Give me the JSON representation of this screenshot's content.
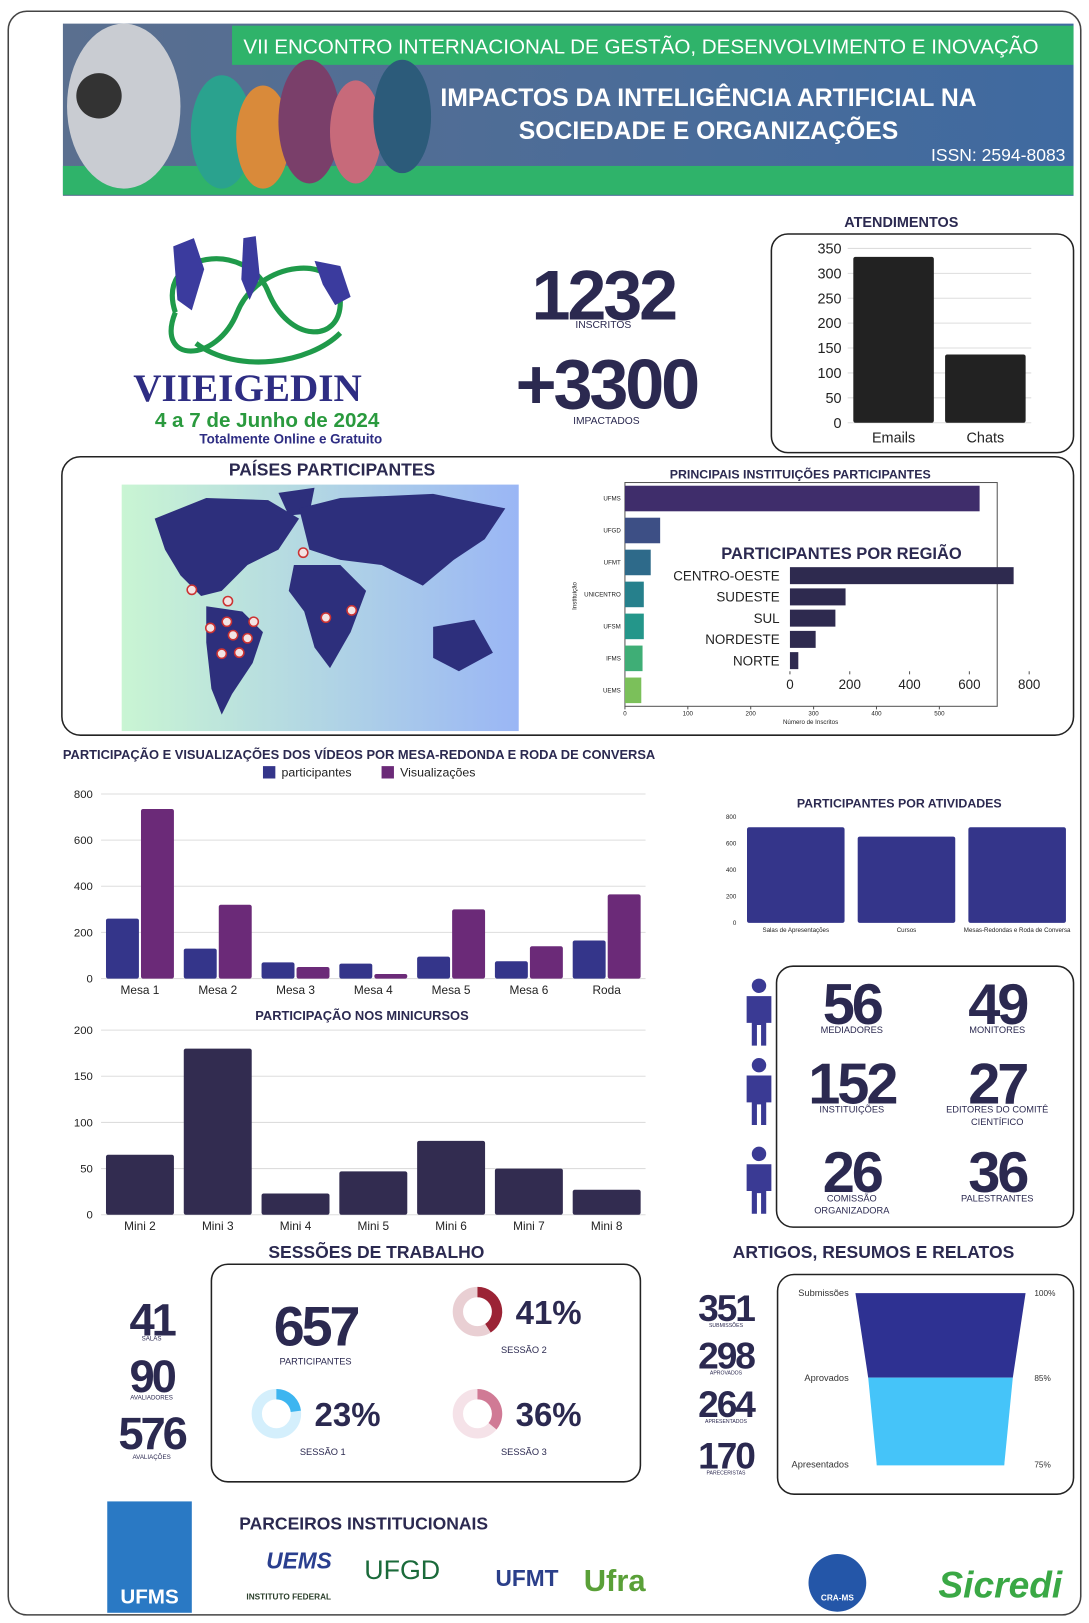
{
  "header": {
    "event": "VII ENCONTRO INTERNACIONAL DE GESTÃO, DESENVOLVIMENTO E INOVAÇÃO",
    "title_line1": "IMPACTOS DA INTELIGÊNCIA ARTIFICIAL NA",
    "title_line2": "SOCIEDADE E ORGANIZAÇÕES",
    "issn": "ISSN: 2594-8083"
  },
  "logo": {
    "name": "VIIEIGEDIN",
    "dates": "4 a 7 de Junho de 2024",
    "note": "Totalmente Online e Gratuito"
  },
  "highlights": [
    {
      "value": 1232,
      "label": "INSCRITOS"
    },
    {
      "value": "+3300",
      "label": "IMPACTADOS"
    }
  ],
  "map": {
    "title": "PAÍSES PARTICIPANTES"
  },
  "team": [
    {
      "value": 56,
      "label": [
        "MEDIADORES"
      ]
    },
    {
      "value": 49,
      "label": [
        "MONITORES"
      ]
    },
    {
      "value": 152,
      "label": [
        "INSTITUIÇÕES"
      ]
    },
    {
      "value": 27,
      "label": [
        "EDITORES DO COMITÊ",
        "CIENTÍFICO"
      ]
    },
    {
      "value": 26,
      "label": [
        "COMISSÃO",
        "ORGANIZADORA"
      ]
    },
    {
      "value": 36,
      "label": [
        "PALESTRANTES"
      ]
    }
  ],
  "sessions": {
    "title": "SESSÕES DE TRABALHO",
    "stats": [
      {
        "value": 41,
        "label": "SALAS"
      },
      {
        "value": 90,
        "label": "AVALIADORES"
      },
      {
        "value": 576,
        "label": "AVALIAÇÕES"
      }
    ],
    "participants": {
      "value": 657,
      "label": "PARTICIPANTES"
    }
  },
  "papers": {
    "title": "ARTIGOS, RESUMOS E RELATOS",
    "stats": [
      {
        "value": 351,
        "label": "SUBMISSÕES"
      },
      {
        "value": 298,
        "label": "APROVADOS"
      },
      {
        "value": 264,
        "label": "APRESENTADOS"
      },
      {
        "value": 170,
        "label": "PARECERISTAS"
      }
    ]
  },
  "partners": {
    "title": "PARCEIROS INSTITUCIONAIS",
    "logos": [
      "UFMS",
      "UEMS",
      "INSTITUTO FEDERAL",
      "UFGD",
      "UFMT",
      "Ufra",
      "CRA-MS",
      "Sicredi"
    ]
  },
  "chart_data": [
    {
      "type": "bar",
      "title": "ATENDIMENTOS",
      "categories": [
        "Emails",
        "Chats"
      ],
      "values": [
        333,
        137
      ],
      "color": "#222222",
      "ylim": [
        0,
        350
      ],
      "yticks": [
        0,
        50,
        100,
        150,
        200,
        250,
        300,
        350
      ],
      "grid": true
    },
    {
      "type": "hbar",
      "title": "PRINCIPAIS INSTITUIÇÕES PARTICIPANTES",
      "x_label": "Número de Inscritos",
      "y_label": "Instituição",
      "categories": [
        "UFMS",
        "UFGD",
        "UFMT",
        "UNICENTRO",
        "UFSM",
        "IFMS",
        "UEMS"
      ],
      "values": [
        564,
        56,
        41,
        30,
        30,
        28,
        26
      ],
      "colors": [
        "#3f2d6b",
        "#3d4f85",
        "#2e6a8a",
        "#26808c",
        "#24968a",
        "#3fae76",
        "#7bc05a"
      ],
      "xlim": [
        0,
        592
      ],
      "xticks": [
        0,
        100,
        200,
        300,
        400,
        500
      ]
    },
    {
      "type": "hbar",
      "title": "PARTICIPANTES POR REGIÃO",
      "categories": [
        "CENTRO-OESTE",
        "SUDESTE",
        "SUL",
        "NORDESTE",
        "NORTE"
      ],
      "values": [
        748,
        186,
        152,
        86,
        28
      ],
      "color": "#2e2a4f",
      "xlim": [
        0,
        800
      ],
      "xticks": [
        0,
        200,
        400,
        600,
        800
      ]
    },
    {
      "type": "bar",
      "title": "PARTICIPAÇÃO E VISUALIZAÇÕES DOS VÍDEOS POR MESA-REDONDA E RODA DE CONVERSA",
      "categories": [
        "Mesa 1",
        "Mesa 2",
        "Mesa 3",
        "Mesa 4",
        "Mesa 5",
        "Mesa 6",
        "Roda"
      ],
      "series": [
        {
          "name": "participantes",
          "color": "#34358a",
          "values": [
            260,
            130,
            70,
            65,
            95,
            75,
            165
          ]
        },
        {
          "name": "Visualizações",
          "color": "#6b2a78",
          "values": [
            735,
            320,
            50,
            20,
            300,
            140,
            365
          ]
        }
      ],
      "ylim": [
        0,
        800
      ],
      "yticks": [
        0,
        200,
        400,
        600,
        800
      ],
      "grid": true
    },
    {
      "type": "bar",
      "title": "PARTICIPANTES POR ATIVIDADES",
      "categories": [
        "Salas de Apresentações",
        "Cursos",
        "Mesas-Redondas e Roda de Conversa"
      ],
      "values": [
        720,
        650,
        720
      ],
      "color": "#34358a",
      "ylim": [
        0,
        800
      ],
      "yticks": [
        0,
        200,
        400,
        600,
        800
      ],
      "grid": false
    },
    {
      "type": "bar",
      "title": "PARTICIPAÇÃO NOS MINICURSOS",
      "categories": [
        "Mini 2",
        "Mini 3",
        "Mini 4",
        "Mini 5",
        "Mini 6",
        "Mini 7",
        "Mini 8"
      ],
      "values": [
        65,
        180,
        23,
        47,
        80,
        50,
        27
      ],
      "color": "#322c50",
      "ylim": [
        0,
        200
      ],
      "yticks": [
        0,
        50,
        100,
        150,
        200
      ],
      "grid": true
    },
    {
      "type": "donut",
      "categories": [
        "SESSÃO 1",
        "SESSÃO 2",
        "SESSÃO 3"
      ],
      "values": [
        23,
        41,
        36
      ],
      "value_labels": [
        "23%",
        "41%",
        "36%"
      ],
      "colors": [
        "#3db5f0",
        "#9b2335",
        "#d07a95"
      ]
    },
    {
      "type": "funnel",
      "categories": [
        "Submissões",
        "Aprovados",
        "Apresentados"
      ],
      "values": [
        100,
        85,
        75
      ],
      "value_labels": [
        "100%",
        "85%",
        "75%"
      ],
      "colors": [
        "#2e3192",
        "#45c4f9",
        "#45c4f9"
      ]
    }
  ]
}
